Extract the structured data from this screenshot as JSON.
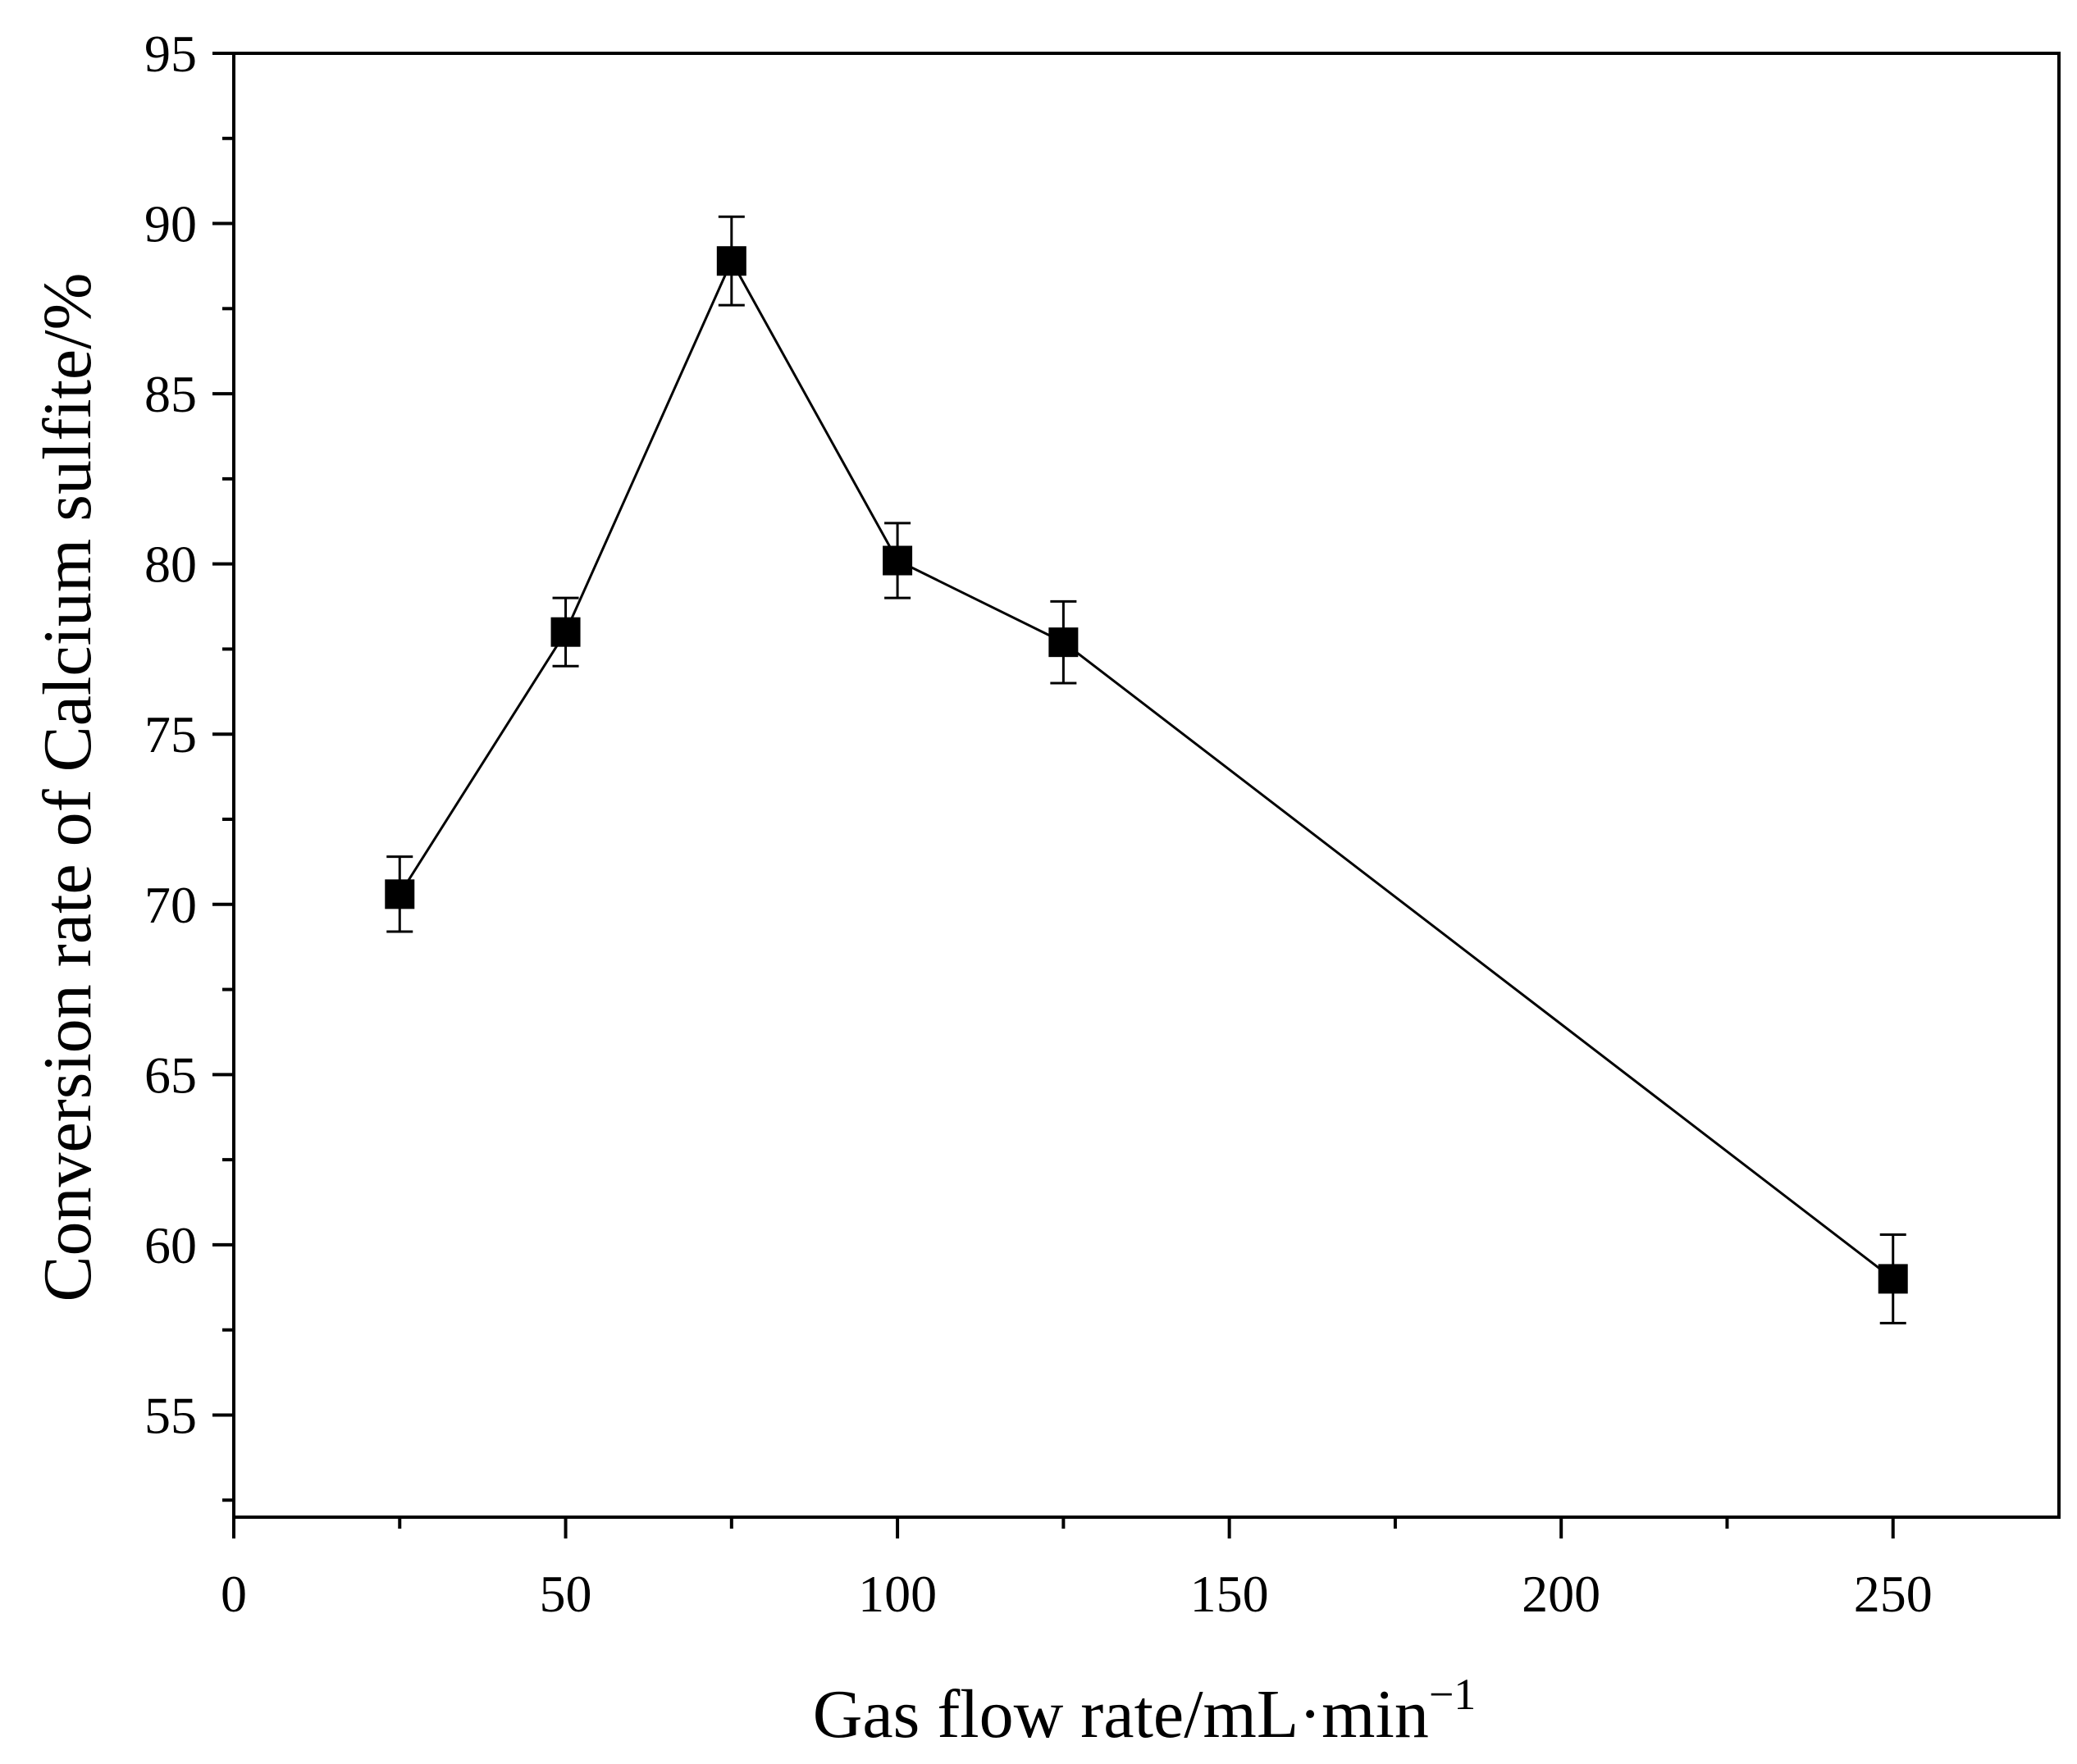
{
  "chart_data": {
    "type": "line",
    "title": "",
    "xlabel": "Gas flow rate/mL·min",
    "xlabel_superscript": "−1",
    "ylabel": "Conversion rate of Calcium sulfite/%",
    "xlim": [
      0,
      275
    ],
    "ylim": [
      52,
      95
    ],
    "xticks": [
      0,
      50,
      100,
      150,
      200,
      250
    ],
    "yticks": [
      55,
      60,
      65,
      70,
      75,
      80,
      85,
      90,
      95
    ],
    "x_minor_step": 25,
    "y_minor_step": 2.5,
    "grid": false,
    "series": [
      {
        "name": "Conversion rate",
        "marker": "square",
        "color": "#000000",
        "x": [
          25,
          50,
          75,
          100,
          125,
          250
        ],
        "y": [
          70.3,
          78.0,
          88.9,
          80.1,
          77.7,
          59.0
        ],
        "error": [
          1.1,
          1.0,
          1.3,
          1.1,
          1.2,
          1.3
        ]
      }
    ]
  }
}
